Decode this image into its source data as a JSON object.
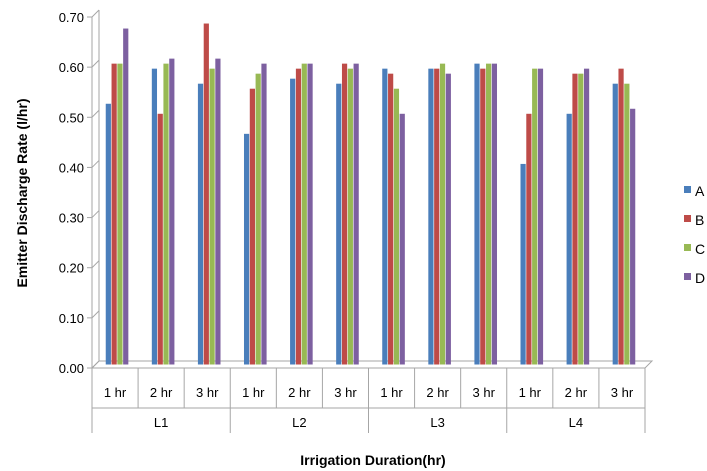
{
  "chart_data": {
    "type": "bar",
    "title": "",
    "xlabel": "Irrigation Duration(hr)",
    "ylabel": "Emitter Discharge Rate (l/hr)",
    "ylim": [
      0,
      0.7
    ],
    "yticks": [
      "0.00",
      "0.10",
      "0.20",
      "0.30",
      "0.40",
      "0.50",
      "0.60",
      "0.70"
    ],
    "groups": [
      "L1",
      "L2",
      "L3",
      "L4"
    ],
    "subcategories": [
      "1 hr",
      "2 hr",
      "3 hr"
    ],
    "categories": [
      "L1 1 hr",
      "L1 2 hr",
      "L1 3 hr",
      "L2 1 hr",
      "L2 2 hr",
      "L2 3 hr",
      "L3 1 hr",
      "L3 2 hr",
      "L3 3 hr",
      "L4 1 hr",
      "L4 2 hr",
      "L4 3 hr"
    ],
    "series": [
      {
        "name": "A",
        "color": "#4a7ebb",
        "values": [
          0.52,
          0.59,
          0.56,
          0.46,
          0.57,
          0.56,
          0.59,
          0.59,
          0.6,
          0.4,
          0.5,
          0.56
        ]
      },
      {
        "name": "B",
        "color": "#be4b48",
        "values": [
          0.6,
          0.5,
          0.68,
          0.55,
          0.59,
          0.6,
          0.58,
          0.59,
          0.59,
          0.5,
          0.58,
          0.59
        ]
      },
      {
        "name": "C",
        "color": "#98b954",
        "values": [
          0.6,
          0.6,
          0.59,
          0.58,
          0.6,
          0.59,
          0.55,
          0.6,
          0.6,
          0.59,
          0.58,
          0.56
        ]
      },
      {
        "name": "D",
        "color": "#7d60a0",
        "values": [
          0.67,
          0.61,
          0.61,
          0.6,
          0.6,
          0.6,
          0.5,
          0.58,
          0.6,
          0.59,
          0.59,
          0.51
        ]
      }
    ],
    "legend_position": "right",
    "grid": false
  }
}
